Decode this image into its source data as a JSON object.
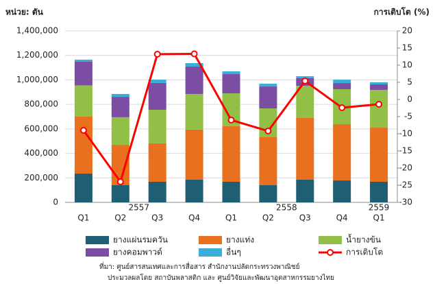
{
  "chart_data": {
    "type": "stacked-bar-line",
    "ylabel": "หน่วย: ตัน",
    "y2label": "การเติบโต (%)",
    "categories": [
      "Q1",
      "Q2",
      "Q3",
      "Q4",
      "Q1",
      "Q2",
      "Q3",
      "Q4",
      "Q1"
    ],
    "year_labels": [
      "2557",
      "2558",
      "2559"
    ],
    "ylim": [
      0,
      1400000
    ],
    "yticks": [
      {
        "value": 0,
        "label": "0"
      },
      {
        "value": 200000,
        "label": "200,000"
      },
      {
        "value": 400000,
        "label": "400,000"
      },
      {
        "value": 600000,
        "label": "600,000"
      },
      {
        "value": 800000,
        "label": "800,000"
      },
      {
        "value": 1000000,
        "label": "1,000,000"
      },
      {
        "value": 1200000,
        "label": "1,200,000"
      },
      {
        "value": 1400000,
        "label": "1,400,000"
      }
    ],
    "y2lim": [
      -30,
      20
    ],
    "y2ticks": [
      -30,
      -25,
      -20,
      -15,
      -10,
      -5,
      0,
      5,
      10,
      15,
      20
    ],
    "grid": true,
    "series": [
      {
        "name": "ยางแผ่นรมควัน",
        "color": "#1f5f73",
        "values": [
          235000,
          140000,
          168000,
          185000,
          168000,
          140000,
          185000,
          179000,
          168000
        ]
      },
      {
        "name": "ยางแท่ง",
        "color": "#e8701e",
        "values": [
          465000,
          330000,
          314000,
          409000,
          454000,
          392000,
          504000,
          459000,
          442000
        ]
      },
      {
        "name": "น้ำยางข้น",
        "color": "#92c047",
        "values": [
          255000,
          225000,
          274000,
          291000,
          268000,
          235000,
          263000,
          286000,
          308000
        ]
      },
      {
        "name": "ยางคอมพาวด์",
        "color": "#7b4ea3",
        "values": [
          193000,
          167000,
          219000,
          224000,
          157000,
          179000,
          62000,
          50000,
          45000
        ]
      },
      {
        "name": "อื่นๆ",
        "color": "#3aaed8",
        "values": [
          17000,
          23000,
          27000,
          28000,
          23000,
          23000,
          16000,
          28000,
          17000
        ]
      },
      {
        "name": "การเติบโต",
        "color": "#ff0000",
        "axis": "y2",
        "values": [
          -9,
          -24,
          13.2,
          13.3,
          -6,
          -9.2,
          5.4,
          -2.4,
          -1.4
        ]
      }
    ],
    "source": [
      "ที่มา: ศูนย์สารสนเทศและการสื่อสาร สำนักงานปลัดกระทรวงพาณิชย์",
      "ประมวลผลโดย สถาบันพลาสติก และ ศูนย์วิจัยและพัฒนาอุตสาหกรรมยางไทย"
    ]
  }
}
